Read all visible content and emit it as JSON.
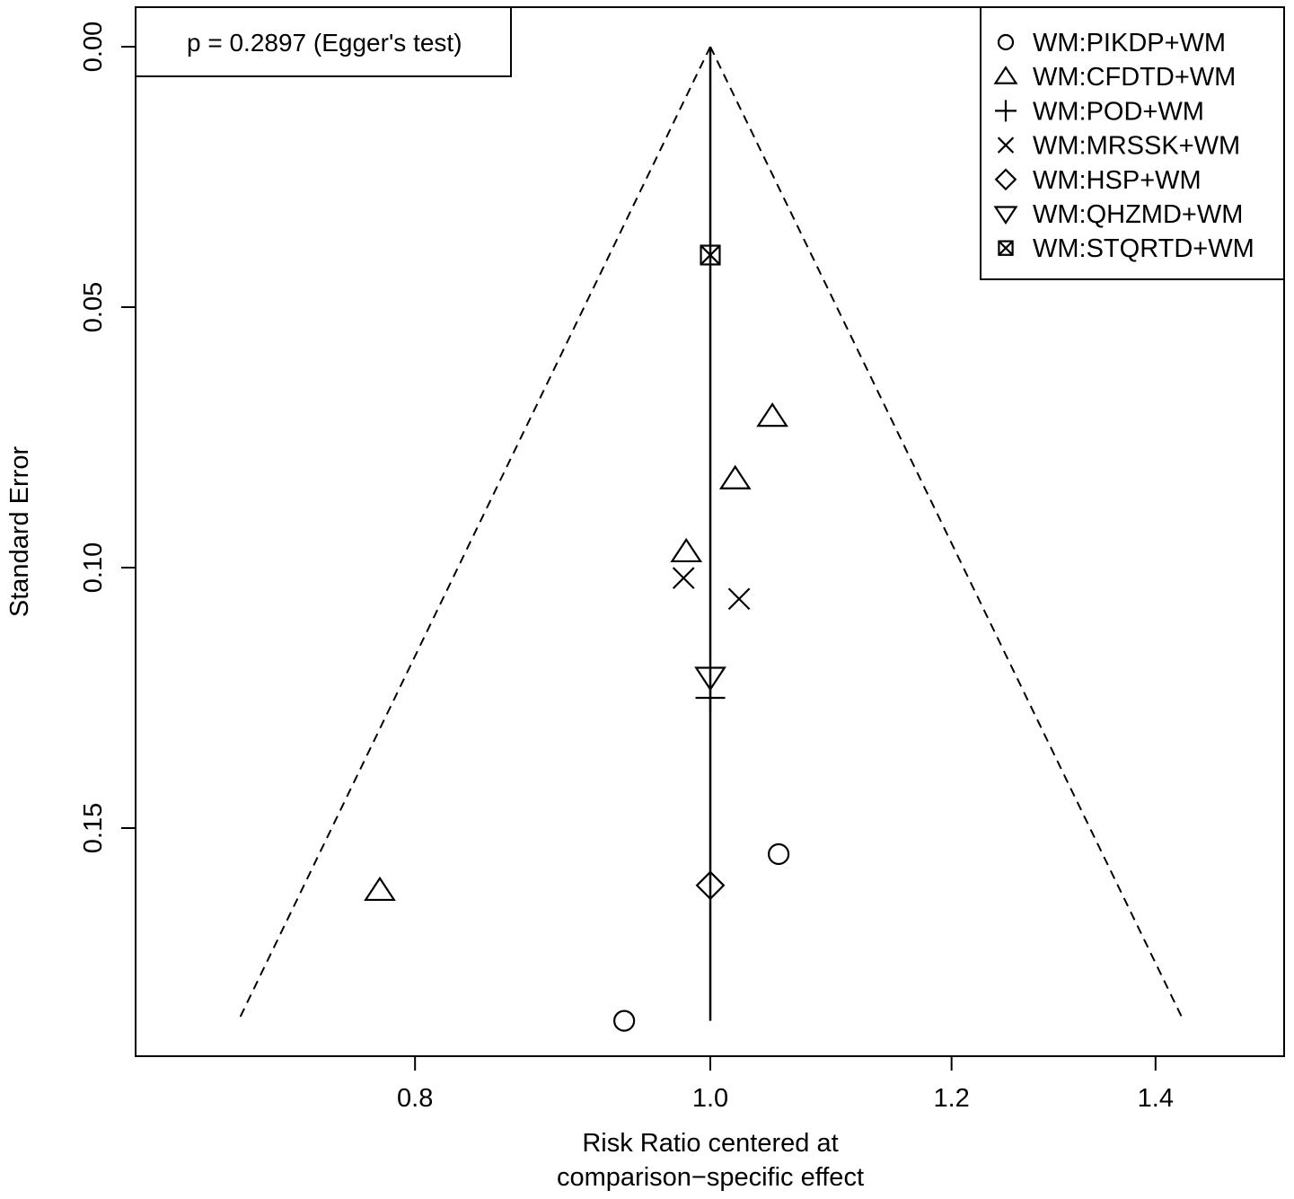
{
  "chart_data": {
    "type": "scatter",
    "subtype": "comparison-adjusted funnel plot",
    "xlabel_lines": [
      "Risk Ratio centered at",
      "comparison−specific effect"
    ],
    "ylabel": "Standard Error",
    "x_scale": "log",
    "xlim": [
      0.67,
      1.45
    ],
    "ylim": [
      0.187,
      0.0
    ],
    "y_reversed": true,
    "x_ticks": [
      0.8,
      1.0,
      1.2,
      1.4
    ],
    "x_tick_labels": [
      "0.8",
      "1.0",
      "1.2",
      "1.4"
    ],
    "y_ticks": [
      0.0,
      0.05,
      0.1,
      0.15
    ],
    "y_tick_labels": [
      "0.00",
      "0.05",
      "0.10",
      "0.15"
    ],
    "annotation": "p = 0.2897 (Egger's test)",
    "annotation_position": "top-left",
    "legend_position": "top-right",
    "grid": false,
    "funnel": {
      "center": 1.0,
      "se_max": 0.187,
      "lower_at_max": 0.7,
      "upper_at_max": 1.43
    },
    "series": [
      {
        "name": "WM:PIKDP+WM",
        "symbol": "circle",
        "points": [
          {
            "x": 1.053,
            "y": 0.155
          },
          {
            "x": 0.937,
            "y": 0.187
          }
        ]
      },
      {
        "name": "WM:CFDTD+WM",
        "symbol": "triangle",
        "points": [
          {
            "x": 1.048,
            "y": 0.071
          },
          {
            "x": 1.019,
            "y": 0.083
          },
          {
            "x": 0.982,
            "y": 0.097
          },
          {
            "x": 0.779,
            "y": 0.162
          }
        ]
      },
      {
        "name": "WM:POD+WM",
        "symbol": "plus",
        "points": [
          {
            "x": 1.0,
            "y": 0.125
          }
        ]
      },
      {
        "name": "WM:MRSSK+WM",
        "symbol": "cross",
        "points": [
          {
            "x": 0.98,
            "y": 0.102
          },
          {
            "x": 1.022,
            "y": 0.106
          }
        ]
      },
      {
        "name": "WM:HSP+WM",
        "symbol": "diamond",
        "points": [
          {
            "x": 1.0,
            "y": 0.161
          }
        ]
      },
      {
        "name": "WM:QHZMD+WM",
        "symbol": "triangle-down",
        "points": [
          {
            "x": 1.0,
            "y": 0.121
          }
        ]
      },
      {
        "name": "WM:STQRTD+WM",
        "symbol": "square-cross",
        "points": [
          {
            "x": 1.0,
            "y": 0.04
          }
        ]
      }
    ]
  }
}
